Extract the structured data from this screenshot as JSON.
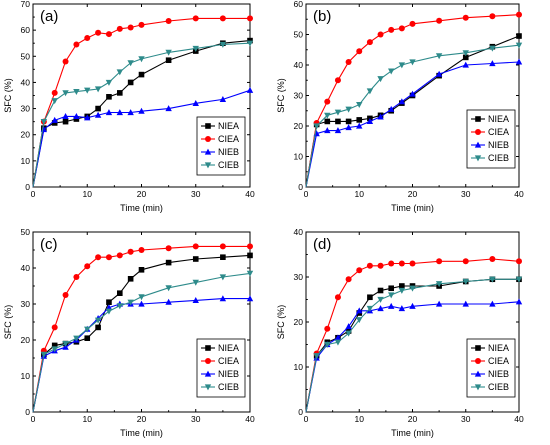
{
  "chart_data": [
    {
      "type": "line",
      "panel_label": "(a)",
      "xlabel": "Time (min)",
      "ylabel": "SFC (%)",
      "xlim": [
        0,
        40
      ],
      "ylim": [
        0,
        70
      ],
      "xticks": [
        0,
        10,
        20,
        30,
        40
      ],
      "yticks": [
        0,
        10,
        20,
        30,
        40,
        50,
        60,
        70
      ],
      "legend_position": "bottom-right",
      "series": [
        {
          "name": "NIEA",
          "color": "#000000",
          "marker": "square",
          "x": [
            0,
            2,
            4,
            6,
            8,
            10,
            12,
            14,
            16,
            18,
            20,
            25,
            30,
            35,
            40
          ],
          "y": [
            0,
            22.5,
            24.5,
            25,
            26,
            27,
            30,
            34.5,
            36,
            40,
            43,
            48.5,
            52,
            55,
            56
          ]
        },
        {
          "name": "CIEA",
          "color": "#ff0000",
          "marker": "circle",
          "x": [
            0,
            2,
            4,
            6,
            8,
            10,
            12,
            14,
            16,
            18,
            20,
            25,
            30,
            35,
            40
          ],
          "y": [
            0,
            25,
            36,
            48,
            54.5,
            57,
            59,
            58.5,
            60.5,
            61,
            62,
            63.5,
            64.5,
            64.5,
            64.5
          ]
        },
        {
          "name": "NIEB",
          "color": "#0000ff",
          "marker": "triangle-up",
          "x": [
            0,
            2,
            4,
            6,
            8,
            10,
            12,
            14,
            16,
            18,
            20,
            25,
            30,
            35,
            40
          ],
          "y": [
            0,
            22,
            25.5,
            27,
            27,
            26.5,
            27.5,
            28.5,
            28.5,
            28.5,
            29,
            30,
            32,
            33.5,
            37
          ]
        },
        {
          "name": "CIEB",
          "color": "#2e8b8b",
          "marker": "triangle-down",
          "x": [
            0,
            2,
            4,
            6,
            8,
            10,
            12,
            14,
            16,
            18,
            20,
            25,
            30,
            35,
            40
          ],
          "y": [
            0,
            25,
            33,
            36,
            36.5,
            37,
            37.5,
            40,
            44,
            47.5,
            49,
            51.5,
            53,
            54.5,
            55
          ]
        }
      ]
    },
    {
      "type": "line",
      "panel_label": "(b)",
      "xlabel": "Time (min)",
      "ylabel": "SFC (%)",
      "xlim": [
        0,
        40
      ],
      "ylim": [
        0,
        60
      ],
      "xticks": [
        0,
        10,
        20,
        30,
        40
      ],
      "yticks": [
        0,
        10,
        20,
        30,
        40,
        50,
        60
      ],
      "legend_position": "bottom-right",
      "series": [
        {
          "name": "NIEA",
          "color": "#000000",
          "marker": "square",
          "x": [
            0,
            2,
            4,
            6,
            8,
            10,
            12,
            14,
            16,
            18,
            20,
            25,
            30,
            35,
            40
          ],
          "y": [
            0,
            20.5,
            21.5,
            21.5,
            21.5,
            22,
            22.5,
            23.5,
            25,
            27.5,
            30,
            36.5,
            42.5,
            46,
            49.5
          ]
        },
        {
          "name": "CIEA",
          "color": "#ff0000",
          "marker": "circle",
          "x": [
            0,
            2,
            4,
            6,
            8,
            10,
            12,
            14,
            16,
            18,
            20,
            25,
            30,
            35,
            40
          ],
          "y": [
            0,
            21,
            28,
            35,
            41,
            44.5,
            47.5,
            50,
            51.5,
            52,
            53.5,
            54.5,
            55.5,
            56,
            56.5
          ]
        },
        {
          "name": "NIEB",
          "color": "#0000ff",
          "marker": "triangle-up",
          "x": [
            0,
            2,
            4,
            6,
            8,
            10,
            12,
            14,
            16,
            18,
            20,
            25,
            30,
            35,
            40
          ],
          "y": [
            0,
            17.5,
            18.5,
            18.5,
            19.5,
            20,
            21.5,
            23,
            25.5,
            28,
            30.5,
            37,
            40,
            40.5,
            41
          ]
        },
        {
          "name": "CIEB",
          "color": "#2e8b8b",
          "marker": "triangle-down",
          "x": [
            0,
            2,
            4,
            6,
            8,
            10,
            12,
            14,
            16,
            18,
            20,
            25,
            30,
            35,
            40
          ],
          "y": [
            0,
            20,
            23.5,
            24.5,
            25.5,
            27,
            31.5,
            35.5,
            38,
            40,
            41,
            43,
            44,
            45.5,
            46.5
          ]
        }
      ]
    },
    {
      "type": "line",
      "panel_label": "(c)",
      "xlabel": "Time (min)",
      "ylabel": "SFC (%)",
      "xlim": [
        0,
        40
      ],
      "ylim": [
        0,
        50
      ],
      "xticks": [
        0,
        10,
        20,
        30,
        40
      ],
      "yticks": [
        0,
        10,
        20,
        30,
        40,
        50
      ],
      "legend_position": "bottom-right",
      "series": [
        {
          "name": "NIEA",
          "color": "#000000",
          "marker": "square",
          "x": [
            0,
            2,
            4,
            6,
            8,
            10,
            12,
            14,
            16,
            18,
            20,
            25,
            30,
            35,
            40
          ],
          "y": [
            0,
            16,
            18.5,
            19,
            19.5,
            20.5,
            23.5,
            30.5,
            33,
            37,
            39.5,
            41.5,
            42.5,
            43,
            43.5
          ]
        },
        {
          "name": "CIEA",
          "color": "#ff0000",
          "marker": "circle",
          "x": [
            0,
            2,
            4,
            6,
            8,
            10,
            12,
            14,
            16,
            18,
            20,
            25,
            30,
            35,
            40
          ],
          "y": [
            0,
            17,
            23.5,
            32.5,
            37.5,
            40.5,
            43,
            43,
            43.5,
            44.5,
            45,
            45.5,
            46,
            46,
            46
          ]
        },
        {
          "name": "NIEB",
          "color": "#0000ff",
          "marker": "triangle-up",
          "x": [
            0,
            2,
            4,
            6,
            8,
            10,
            12,
            14,
            16,
            18,
            20,
            25,
            30,
            35,
            40
          ],
          "y": [
            0,
            15.5,
            17,
            18,
            20,
            23,
            26,
            29,
            30,
            30,
            30,
            30.5,
            31,
            31.5,
            31.5
          ]
        },
        {
          "name": "CIEB",
          "color": "#2e8b8b",
          "marker": "triangle-down",
          "x": [
            0,
            2,
            4,
            6,
            8,
            10,
            12,
            14,
            16,
            18,
            20,
            25,
            30,
            35,
            40
          ],
          "y": [
            0,
            16,
            17.5,
            19,
            20.5,
            23,
            25.5,
            28,
            29.5,
            30.5,
            32,
            34.5,
            36,
            37.5,
            38.5
          ]
        }
      ]
    },
    {
      "type": "line",
      "panel_label": "(d)",
      "xlabel": "Time (min)",
      "ylabel": "SFC (%)",
      "xlim": [
        0,
        40
      ],
      "ylim": [
        0,
        40
      ],
      "xticks": [
        0,
        10,
        20,
        30,
        40
      ],
      "yticks": [
        0,
        10,
        20,
        30,
        40
      ],
      "legend_position": "bottom-right",
      "series": [
        {
          "name": "NIEA",
          "color": "#000000",
          "marker": "square",
          "x": [
            0,
            2,
            4,
            6,
            8,
            10,
            12,
            14,
            16,
            18,
            20,
            25,
            30,
            35,
            40
          ],
          "y": [
            0,
            12.5,
            15.5,
            16.5,
            18,
            22,
            25.5,
            27,
            27.5,
            28,
            28,
            28,
            29,
            29.5,
            29.5
          ]
        },
        {
          "name": "CIEA",
          "color": "#ff0000",
          "marker": "circle",
          "x": [
            0,
            2,
            4,
            6,
            8,
            10,
            12,
            14,
            16,
            18,
            20,
            25,
            30,
            35,
            40
          ],
          "y": [
            0,
            13,
            18.5,
            25.5,
            29.5,
            31.5,
            32.5,
            32.5,
            33,
            33,
            33,
            33.5,
            33.5,
            34,
            33.5
          ]
        },
        {
          "name": "NIEB",
          "color": "#0000ff",
          "marker": "triangle-up",
          "x": [
            0,
            2,
            4,
            6,
            8,
            10,
            12,
            14,
            16,
            18,
            20,
            25,
            30,
            35,
            40
          ],
          "y": [
            0,
            12,
            15,
            16.5,
            19,
            22.5,
            22.5,
            23,
            23.5,
            23,
            23.5,
            24,
            24,
            24,
            24.5
          ]
        },
        {
          "name": "CIEB",
          "color": "#2e8b8b",
          "marker": "triangle-down",
          "x": [
            0,
            2,
            4,
            6,
            8,
            10,
            12,
            14,
            16,
            18,
            20,
            25,
            30,
            35,
            40
          ],
          "y": [
            0,
            12.5,
            15,
            15.5,
            17.5,
            20.5,
            23,
            25,
            26,
            27,
            27.5,
            28.5,
            29,
            29.5,
            29.5
          ]
        }
      ]
    }
  ]
}
